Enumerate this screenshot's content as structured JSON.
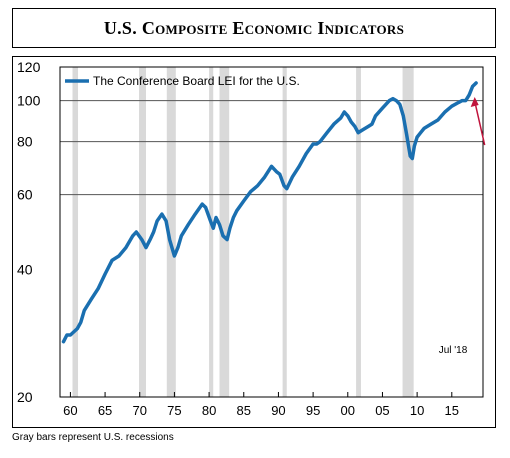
{
  "header": {
    "title": "U.S. Composite Economic Indicators"
  },
  "footnote": "Gray bars represent U.S. recessions",
  "colors": {
    "series": "#1a6fb0",
    "recession": "#d9d9d9",
    "arrow": "#c0143c"
  },
  "chart_data": {
    "type": "line",
    "y_scale": "log",
    "ylim": [
      20,
      120
    ],
    "yticks": [
      20,
      40,
      60,
      80,
      100,
      120
    ],
    "xlim": [
      1958.5,
      2019.5
    ],
    "xticks": [
      1960,
      1965,
      1970,
      1975,
      1980,
      1985,
      1990,
      1995,
      2000,
      2005,
      2010,
      2015
    ],
    "xtick_labels": [
      "60",
      "65",
      "70",
      "75",
      "80",
      "85",
      "90",
      "95",
      "00",
      "05",
      "10",
      "15"
    ],
    "gridlines_y": [
      60,
      80,
      100
    ],
    "legend": "top-left",
    "annotation": "Jul '18",
    "recessions": [
      [
        1960.3,
        1961.1
      ],
      [
        1969.9,
        1970.9
      ],
      [
        1973.9,
        1975.2
      ],
      [
        1980.0,
        1980.6
      ],
      [
        1981.5,
        1982.9
      ],
      [
        1990.6,
        1991.2
      ],
      [
        2001.2,
        2001.9
      ],
      [
        2007.9,
        2009.5
      ]
    ],
    "series": [
      {
        "name": "The Conference Board LEI for the U.S.",
        "x": [
          1959.0,
          1959.5,
          1960.0,
          1961.0,
          1961.5,
          1962.0,
          1963.0,
          1964.0,
          1965.0,
          1966.0,
          1967.0,
          1968.0,
          1969.0,
          1969.5,
          1970.3,
          1970.9,
          1971.5,
          1972.0,
          1972.5,
          1973.2,
          1973.8,
          1974.3,
          1975.0,
          1975.5,
          1976.0,
          1977.0,
          1978.0,
          1979.0,
          1979.5,
          1980.2,
          1980.6,
          1981.0,
          1981.5,
          1982.0,
          1982.6,
          1983.0,
          1983.5,
          1984.0,
          1985.0,
          1986.0,
          1987.0,
          1988.0,
          1989.0,
          1989.7,
          1990.2,
          1990.8,
          1991.2,
          1992.0,
          1993.0,
          1994.0,
          1995.0,
          1995.5,
          1996.0,
          1997.0,
          1998.0,
          1999.0,
          1999.5,
          2000.0,
          2000.5,
          2001.0,
          2001.5,
          2002.0,
          2003.0,
          2003.5,
          2004.0,
          2005.0,
          2006.0,
          2006.5,
          2007.0,
          2007.5,
          2008.0,
          2008.5,
          2009.0,
          2009.3,
          2009.6,
          2010.0,
          2010.5,
          2011.0,
          2012.0,
          2013.0,
          2014.0,
          2015.0,
          2016.0,
          2016.5,
          2017.0,
          2017.5,
          2018.0,
          2018.5
        ],
        "y": [
          27,
          28,
          28,
          29,
          30,
          32,
          34,
          36,
          39,
          42,
          43,
          45,
          48,
          49,
          47,
          45,
          47,
          49,
          52,
          54,
          52,
          47,
          43,
          45,
          48,
          51,
          54,
          57,
          56,
          52,
          50,
          53,
          51,
          48,
          47,
          50,
          53,
          55,
          58,
          61,
          63,
          66,
          70,
          68,
          67,
          63,
          62,
          66,
          70,
          75,
          79,
          79,
          80,
          84,
          88,
          91,
          94,
          92,
          89,
          87,
          84,
          85,
          87,
          88,
          92,
          96,
          100,
          101,
          100,
          98,
          92,
          83,
          74,
          73,
          78,
          82,
          84,
          86,
          88,
          90,
          94,
          97,
          99,
          100,
          100,
          103,
          108,
          110
        ]
      }
    ]
  }
}
